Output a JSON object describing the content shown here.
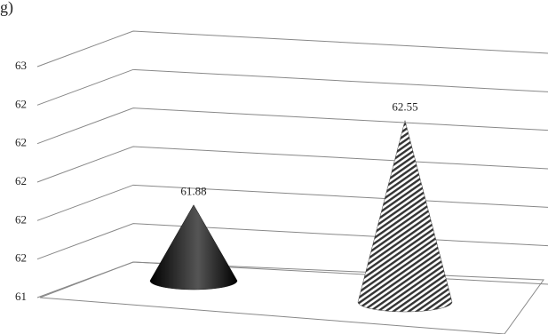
{
  "chart_data": {
    "type": "cone3d",
    "title": "g)",
    "values": [
      61.88,
      62.55
    ],
    "colors": [
      "#111111",
      "#444444"
    ],
    "ylim": [
      61.4,
      62.6
    ],
    "yticks": [
      {
        "value": 61.4,
        "label": "61"
      },
      {
        "value": 61.6,
        "label": "62"
      },
      {
        "value": 61.8,
        "label": "62"
      },
      {
        "value": 62.0,
        "label": "62"
      },
      {
        "value": 62.2,
        "label": "62"
      },
      {
        "value": 62.4,
        "label": "62"
      },
      {
        "value": 62.6,
        "label": "63"
      }
    ],
    "grid": true
  }
}
